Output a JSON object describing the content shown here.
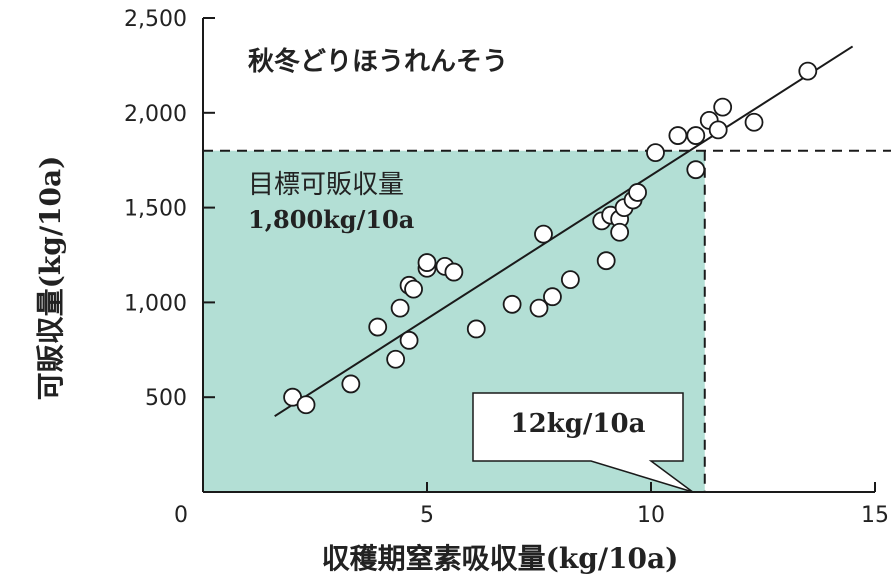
{
  "chart_data": {
    "type": "scatter",
    "title": "秋冬どりほうれんそう",
    "xlabel": "収穫期窒素吸収量(kg/10a)",
    "ylabel": "可販収量(kg/10a)",
    "xlim": [
      0,
      15
    ],
    "ylim": [
      0,
      2500
    ],
    "x_ticks": [
      "0",
      "5",
      "10",
      "15"
    ],
    "y_ticks": [
      "0",
      "500",
      "1,000",
      "1,500",
      "2,000",
      "2,500"
    ],
    "x_tick_values": [
      0,
      5,
      10,
      15
    ],
    "y_tick_values": [
      0,
      500,
      1000,
      1500,
      2000,
      2500
    ],
    "points": [
      {
        "x": 2.0,
        "y": 500
      },
      {
        "x": 2.3,
        "y": 460
      },
      {
        "x": 3.3,
        "y": 570
      },
      {
        "x": 3.9,
        "y": 870
      },
      {
        "x": 4.3,
        "y": 700
      },
      {
        "x": 4.4,
        "y": 970
      },
      {
        "x": 4.6,
        "y": 1090
      },
      {
        "x": 4.6,
        "y": 800
      },
      {
        "x": 4.7,
        "y": 1070
      },
      {
        "x": 5.0,
        "y": 1180
      },
      {
        "x": 5.0,
        "y": 1210
      },
      {
        "x": 5.4,
        "y": 1190
      },
      {
        "x": 5.6,
        "y": 1160
      },
      {
        "x": 6.1,
        "y": 860
      },
      {
        "x": 6.9,
        "y": 990
      },
      {
        "x": 7.5,
        "y": 970
      },
      {
        "x": 7.6,
        "y": 1360
      },
      {
        "x": 7.8,
        "y": 1030
      },
      {
        "x": 8.2,
        "y": 1120
      },
      {
        "x": 8.9,
        "y": 1430
      },
      {
        "x": 9.0,
        "y": 1220
      },
      {
        "x": 9.1,
        "y": 1460
      },
      {
        "x": 9.3,
        "y": 1440
      },
      {
        "x": 9.3,
        "y": 1370
      },
      {
        "x": 9.4,
        "y": 1500
      },
      {
        "x": 9.6,
        "y": 1540
      },
      {
        "x": 9.7,
        "y": 1580
      },
      {
        "x": 10.1,
        "y": 1790
      },
      {
        "x": 10.6,
        "y": 1880
      },
      {
        "x": 11.0,
        "y": 1880
      },
      {
        "x": 11.0,
        "y": 1700
      },
      {
        "x": 11.3,
        "y": 1960
      },
      {
        "x": 11.5,
        "y": 1910
      },
      {
        "x": 11.6,
        "y": 2030
      },
      {
        "x": 12.3,
        "y": 1950
      },
      {
        "x": 13.5,
        "y": 2220
      }
    ],
    "regression_line": {
      "x": [
        1.6,
        14.5
      ],
      "y": [
        400,
        2350
      ]
    },
    "target_yield": 1800,
    "target_nitrogen": 11.2,
    "target_label_line1": "目標可販収量",
    "target_label_line2": "1,800kg/10a",
    "callout_label": "12kg/10a",
    "shade_color": "#b3dfd5",
    "line_color": "#1a1a1a",
    "marker_fill": "#ffffff",
    "grid": false,
    "legend": "none"
  }
}
